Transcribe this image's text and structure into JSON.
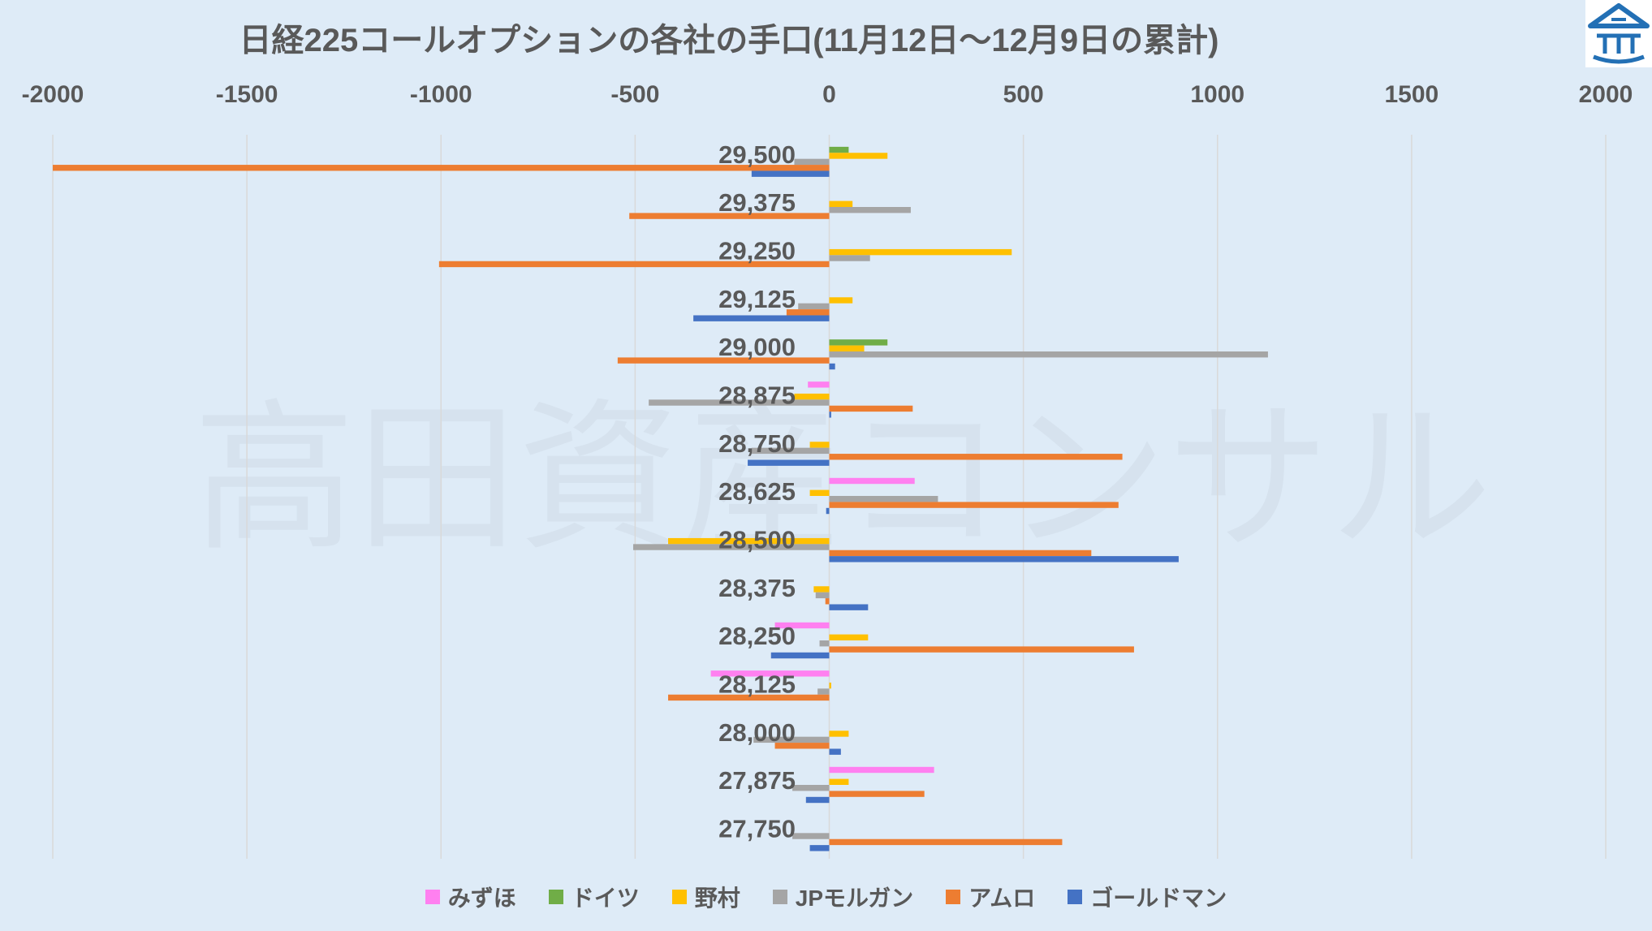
{
  "watermark": "高田資産コンサル",
  "logo": {
    "icon": "house-logo-icon",
    "color": "#2370B5"
  },
  "colors": {
    "background": "#DEEBF7",
    "text": "#595959",
    "grid": "#D9D9D9"
  },
  "chart_data": {
    "type": "bar",
    "orientation": "horizontal",
    "title": "日経225コールオプションの各社の手口(11月12日～12月9日の累計)",
    "xlim": [
      -2000,
      2000
    ],
    "x_axis_position": "top",
    "x_tick_labels": [
      "-2000",
      "-1500",
      "-1000",
      "-500",
      "0",
      "500",
      "1000",
      "1500",
      "2000"
    ],
    "grid": true,
    "legend": "bottom",
    "categories": [
      "29,500",
      "29,375",
      "29,250",
      "29,125",
      "29,000",
      "28,875",
      "28,750",
      "28,625",
      "28,500",
      "28,375",
      "28,250",
      "28,125",
      "28,000",
      "27,875",
      "27,750"
    ],
    "series": [
      {
        "name": "みずほ",
        "color": "#FF80F0",
        "values": [
          0,
          0,
          0,
          0,
          0,
          -55,
          0,
          220,
          0,
          0,
          -140,
          -305,
          0,
          270,
          0
        ]
      },
      {
        "name": "ドイツ",
        "color": "#70AD47",
        "values": [
          50,
          0,
          0,
          0,
          150,
          0,
          0,
          0,
          0,
          0,
          0,
          0,
          0,
          0,
          0
        ]
      },
      {
        "name": "野村",
        "color": "#FFC000",
        "values": [
          150,
          60,
          470,
          60,
          90,
          -90,
          -50,
          -50,
          -415,
          -40,
          100,
          5,
          50,
          50,
          0
        ]
      },
      {
        "name": "JPモルガン",
        "color": "#A5A5A5",
        "values": [
          -90,
          210,
          105,
          -80,
          1130,
          -465,
          -200,
          280,
          -505,
          -35,
          -25,
          -30,
          -195,
          -95,
          -95
        ]
      },
      {
        "name": "アムロ",
        "color": "#ED7D31",
        "values": [
          -2000,
          -515,
          -1005,
          -110,
          -545,
          215,
          755,
          745,
          675,
          -10,
          785,
          -415,
          -140,
          245,
          600
        ]
      },
      {
        "name": "ゴールドマン",
        "color": "#4472C4",
        "values": [
          -200,
          0,
          0,
          -350,
          15,
          5,
          -210,
          -8,
          900,
          100,
          -150,
          0,
          30,
          -60,
          -50
        ]
      }
    ]
  }
}
